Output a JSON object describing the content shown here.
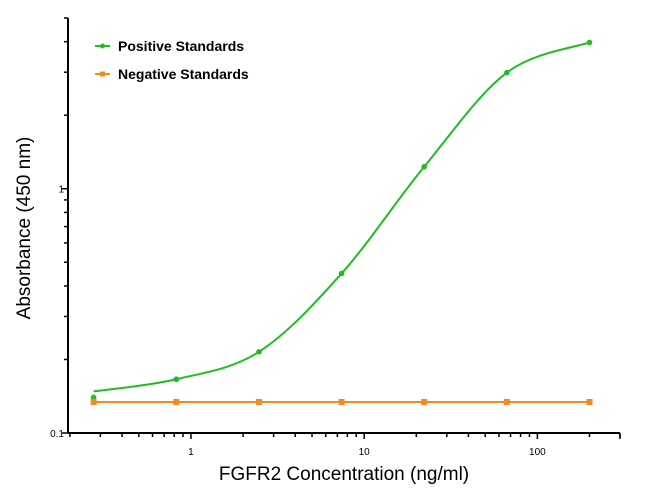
{
  "chart_data": {
    "type": "scatter",
    "xlabel": "FGFR2 Concentration (ng/ml)",
    "ylabel": "Absorbance (450 nm)",
    "xscale": "log",
    "yscale": "log",
    "xlim": [
      0.195,
      300
    ],
    "ylim": [
      0.1,
      5.0
    ],
    "xticks": [
      1,
      10,
      100
    ],
    "xtick_labels": [
      "1",
      "10",
      "100"
    ],
    "yticks": [
      0.1,
      1
    ],
    "ytick_labels": [
      "0.1",
      "1"
    ],
    "grid": false,
    "legend_position": "top-left",
    "series": [
      {
        "name": "Positive Standards",
        "color": "#22bb22",
        "marker": "circle",
        "fit_curve": true,
        "x": [
          0.274,
          0.823,
          2.47,
          7.41,
          22.2,
          66.7,
          200
        ],
        "y": [
          0.14,
          0.166,
          0.215,
          0.45,
          1.23,
          2.99,
          3.97
        ]
      },
      {
        "name": "Negative Standards",
        "color": "#f08a24",
        "marker": "square",
        "fit_curve": false,
        "x": [
          0.274,
          0.823,
          2.47,
          7.41,
          22.2,
          66.7,
          200
        ],
        "y": [
          0.134,
          0.134,
          0.134,
          0.134,
          0.134,
          0.134,
          0.134
        ]
      }
    ]
  }
}
